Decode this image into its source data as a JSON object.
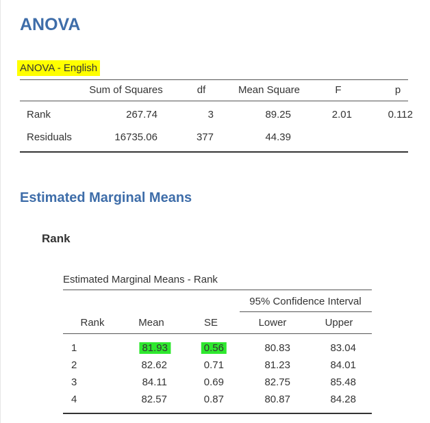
{
  "anova": {
    "heading": "ANOVA",
    "table_title": "ANOVA - English",
    "columns": [
      "",
      "Sum of Squares",
      "df",
      "Mean Square",
      "F",
      "p"
    ],
    "rows": [
      {
        "term": "Rank",
        "ss": "267.74",
        "df": "3",
        "ms": "89.25",
        "f": "2.01",
        "p": "0.112"
      },
      {
        "term": "Residuals",
        "ss": "16735.06",
        "df": "377",
        "ms": "44.39",
        "f": "",
        "p": ""
      }
    ]
  },
  "emm": {
    "heading": "Estimated Marginal Means",
    "subheading": "Rank",
    "table_title": "Estimated Marginal Means - Rank",
    "ci_header": "95% Confidence Interval",
    "columns": [
      "Rank",
      "Mean",
      "SE",
      "Lower",
      "Upper"
    ],
    "rows": [
      {
        "rank": "1",
        "mean": "81.93",
        "se": "0.56",
        "lower": "80.83",
        "upper": "83.04"
      },
      {
        "rank": "2",
        "mean": "82.62",
        "se": "0.71",
        "lower": "81.23",
        "upper": "84.01"
      },
      {
        "rank": "3",
        "mean": "84.11",
        "se": "0.69",
        "lower": "82.75",
        "upper": "85.48"
      },
      {
        "rank": "4",
        "mean": "82.57",
        "se": "0.87",
        "lower": "80.87",
        "upper": "84.28"
      }
    ]
  },
  "colors": {
    "heading": "#3e6da9",
    "title_highlight": "#ffff00",
    "cell_highlight": "#2ee82e"
  }
}
